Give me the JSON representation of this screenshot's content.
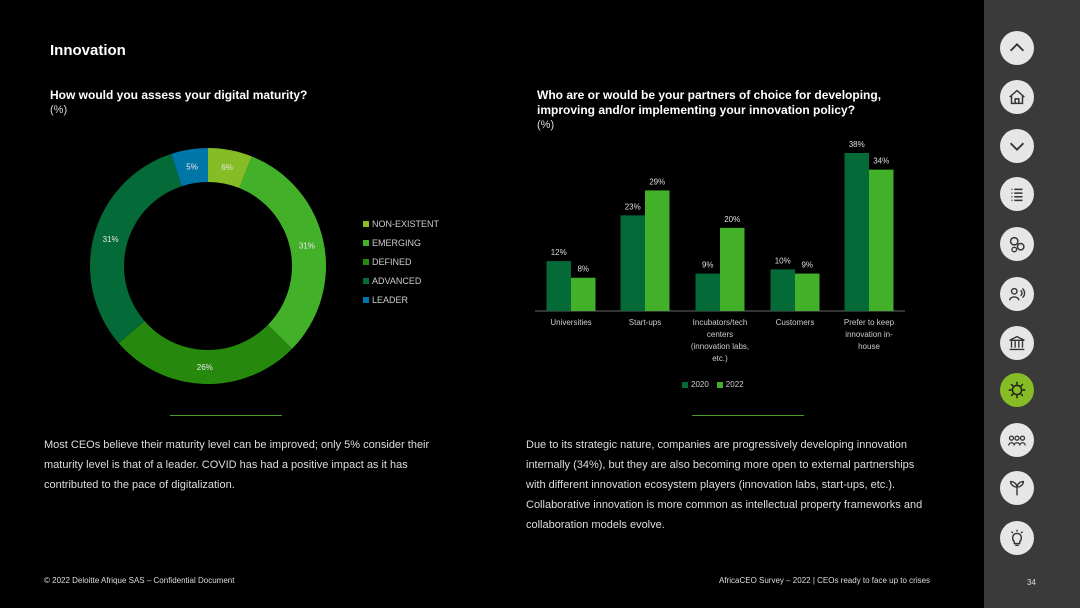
{
  "page": {
    "title": "Innovation",
    "page_number": "34"
  },
  "left": {
    "question": "How would you assess your digital maturity?",
    "unit": "(%)",
    "paragraph": "Most CEOs believe their maturity level can be improved; only 5% consider their maturity level is that of a leader. COVID has had a positive impact as it has contributed to the pace of digitalization."
  },
  "right": {
    "question": "Who are or would be your partners of choice for developing, improving and/or implementing your innovation policy?",
    "unit": "(%)",
    "paragraph": "Due to its strategic nature, companies are progressively developing innovation internally (34%), but they are also becoming more open to external partnerships with different innovation ecosystem players (innovation labs, start-ups, etc.). Collaborative innovation is more common as intellectual property frameworks and collaboration models evolve."
  },
  "footer": {
    "left": "© 2022 Deloitte Afrique SAS – Confidential Document",
    "right": "AfricaCEO Survey – 2022 | CEOs ready to face up to crises"
  },
  "colors": {
    "c2020": "#046a38",
    "c2022": "#43b02a",
    "accent": "#86bc25"
  },
  "sidebar": {
    "items": [
      {
        "icon": "chevron-up-icon"
      },
      {
        "icon": "home-icon"
      },
      {
        "icon": "chevron-down-icon"
      },
      {
        "icon": "list-icon"
      },
      {
        "icon": "gears-icon"
      },
      {
        "icon": "person-speaking-icon"
      },
      {
        "icon": "bank-icon"
      },
      {
        "icon": "gear-innovation-icon",
        "active": true
      },
      {
        "icon": "people-icon"
      },
      {
        "icon": "plant-icon"
      },
      {
        "icon": "lightbulb-icon"
      }
    ]
  },
  "chart_data": [
    {
      "type": "pie",
      "donut": true,
      "slices": [
        {
          "label": "NON-EXISTENT",
          "value": 6,
          "value_label": "6%",
          "color": "#86bc25"
        },
        {
          "label": "EMERGING",
          "value": 31,
          "value_label": "31%",
          "color": "#43b02a"
        },
        {
          "label": "DEFINED",
          "value": 26,
          "value_label": "26%",
          "color": "#26890d"
        },
        {
          "label": "ADVANCED",
          "value": 31,
          "value_label": "31%",
          "color": "#046a38"
        },
        {
          "label": "LEADER",
          "value": 5,
          "value_label": "5%",
          "color": "#0076a8"
        }
      ],
      "legend_position": "right"
    },
    {
      "type": "bar",
      "categories": [
        [
          "Universities"
        ],
        [
          "Start-ups"
        ],
        [
          "Incubators/tech",
          "centers",
          "(innovation labs,",
          "etc.)"
        ],
        [
          "Customers"
        ],
        [
          "Prefer to keep",
          "innovation in-",
          "house"
        ]
      ],
      "series": [
        {
          "name": "2020",
          "values": [
            12,
            23,
            9,
            10,
            38
          ],
          "value_labels": [
            "12%",
            "23%",
            "9%",
            "10%",
            "38%"
          ],
          "color": "#046a38"
        },
        {
          "name": "2022",
          "values": [
            8,
            29,
            20,
            9,
            34
          ],
          "value_labels": [
            "8%",
            "29%",
            "20%",
            "9%",
            "34%"
          ],
          "color": "#43b02a"
        }
      ],
      "ylim": [
        0,
        38
      ],
      "grid": false,
      "legend_position": "bottom"
    }
  ]
}
